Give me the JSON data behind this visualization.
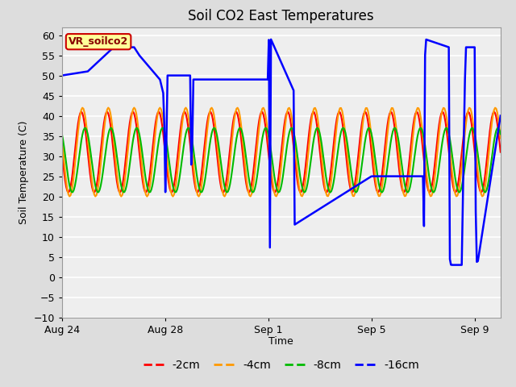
{
  "title": "Soil CO2 East Temperatures",
  "ylabel": "Soil Temperature (C)",
  "xlabel": "Time",
  "ylim": [
    -10,
    62
  ],
  "yticks": [
    -10,
    -5,
    0,
    5,
    10,
    15,
    20,
    25,
    30,
    35,
    40,
    45,
    50,
    55,
    60
  ],
  "line_colors": {
    "2cm": "#ff0000",
    "4cm": "#ff9900",
    "8cm": "#00bb00",
    "16cm": "#0000ff"
  },
  "legend_label": "VR_soilco2",
  "legend_bg": "#ffff99",
  "legend_border": "#cc0000",
  "xtick_labels": [
    "Aug 24",
    "Aug 28",
    "Sep 1",
    "Sep 5",
    "Sep 9"
  ],
  "xtick_positions": [
    0,
    4,
    8,
    12,
    16
  ],
  "n_days": 17,
  "fig_width": 6.4,
  "fig_height": 4.8,
  "dpi": 100
}
